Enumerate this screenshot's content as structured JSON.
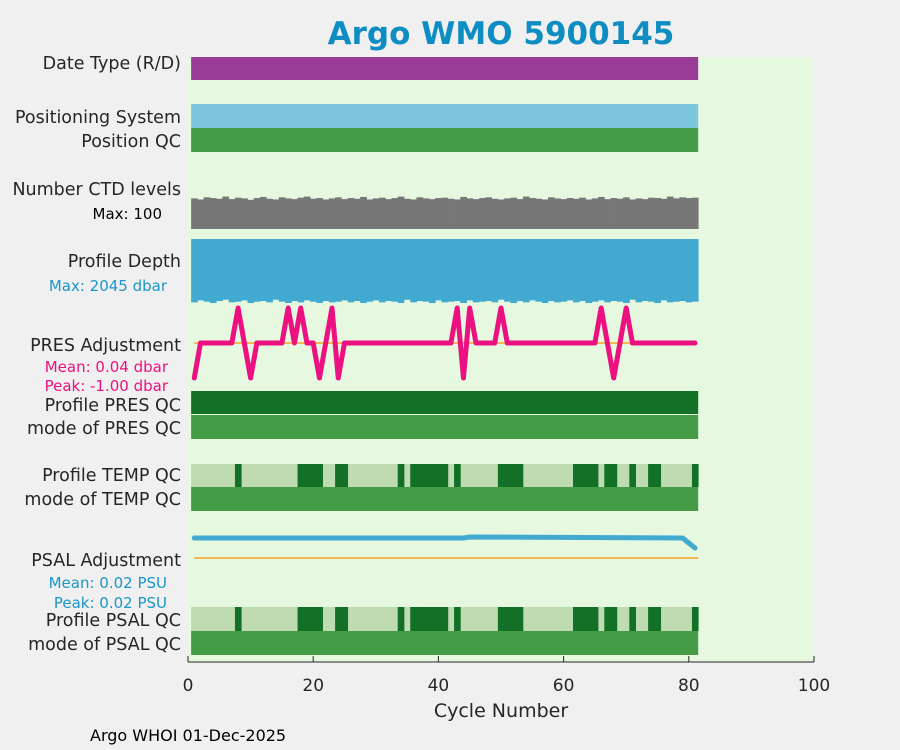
{
  "chart_data": {
    "type": "status-timeline",
    "title": "Argo WMO 5900145",
    "xlabel": "Cycle Number",
    "xlim": [
      0,
      100
    ],
    "xticks": [
      0,
      20,
      40,
      60,
      80,
      100
    ],
    "cycles_first": 1,
    "cycles_last": 81,
    "footer": "Argo WHOI 01-Dec-2025",
    "rows": {
      "date_type": "Date Type (R/D)",
      "positioning_system": "Positioning System",
      "position_qc": "Position QC",
      "ctd_levels": "Number CTD levels",
      "ctd_max": "Max: 100",
      "profile_depth": "Profile Depth",
      "depth_max": "Max: 2045 dbar",
      "pres_adjustment": "PRES Adjustment",
      "pres_mean": "Mean: 0.04 dbar",
      "pres_peak": "Peak: -1.00 dbar",
      "profile_pres_qc": "Profile PRES QC",
      "mode_pres_qc": "mode of PRES QC",
      "profile_temp_qc": "Profile TEMP QC",
      "mode_temp_qc": "mode of TEMP QC",
      "psal_adjustment": "PSAL Adjustment",
      "psal_mean": "Mean: 0.02 PSU",
      "psal_peak": "Peak: 0.02 PSU",
      "profile_psal_qc": "Profile PSAL QC",
      "mode_psal_qc": "mode of PSAL QC"
    },
    "ctd_levels_fraction": [
      0.85,
      0.82,
      0.88,
      0.86,
      0.84,
      0.9,
      0.83,
      0.87,
      0.85,
      0.81,
      0.86,
      0.89,
      0.84,
      0.82,
      0.88,
      0.85,
      0.83,
      0.87,
      0.9,
      0.84,
      0.86,
      0.82,
      0.85,
      0.88,
      0.83,
      0.86,
      0.84,
      0.89,
      0.82,
      0.85,
      0.87,
      0.83,
      0.86,
      0.9,
      0.84,
      0.82,
      0.88,
      0.85,
      0.83,
      0.86,
      0.87,
      0.84,
      0.82,
      0.89,
      0.85,
      0.83,
      0.86,
      0.88,
      0.84,
      0.82,
      0.85,
      0.87,
      0.83,
      0.9,
      0.86,
      0.84,
      0.82,
      0.88,
      0.85,
      0.83,
      0.86,
      0.84,
      0.87,
      0.82,
      0.85,
      0.89,
      0.83,
      0.86,
      0.84,
      0.88,
      0.82,
      0.85,
      0.83,
      0.87,
      0.86,
      0.84,
      0.9,
      0.85,
      0.88,
      0.86,
      0.87
    ],
    "profile_depth_fraction": [
      0.96,
      0.93,
      0.95,
      0.97,
      0.94,
      0.92,
      0.96,
      0.95,
      0.93,
      0.97,
      0.95,
      0.94,
      0.96,
      0.92,
      0.95,
      0.97,
      0.94,
      0.96,
      0.93,
      0.95,
      0.97,
      0.94,
      0.96,
      0.95,
      0.93,
      0.96,
      0.94,
      0.97,
      0.95,
      0.93,
      0.96,
      0.94,
      0.95,
      0.97,
      0.92,
      0.96,
      0.94,
      0.95,
      0.97,
      0.93,
      0.96,
      0.95,
      0.94,
      0.97,
      0.93,
      0.96,
      0.95,
      0.94,
      0.96,
      0.92,
      0.95,
      0.97,
      0.94,
      0.96,
      0.93,
      0.95,
      0.97,
      0.94,
      0.96,
      0.95,
      0.93,
      0.96,
      0.94,
      0.97,
      0.95,
      0.93,
      0.96,
      0.94,
      0.95,
      0.97,
      0.92,
      0.96,
      0.94,
      0.95,
      0.97,
      0.93,
      0.96,
      0.95,
      0.94,
      0.96,
      0.95
    ],
    "pres_adjustment_dbar": {
      "baseline": 0,
      "range": [
        -1,
        1
      ],
      "points": [
        [
          1,
          -1
        ],
        [
          2,
          0
        ],
        [
          7,
          0
        ],
        [
          8,
          1
        ],
        [
          9,
          0
        ],
        [
          10,
          -1
        ],
        [
          11,
          0
        ],
        [
          15,
          0
        ],
        [
          16,
          1
        ],
        [
          17,
          0
        ],
        [
          18,
          1
        ],
        [
          19,
          0
        ],
        [
          20,
          0
        ],
        [
          21,
          -1
        ],
        [
          22,
          0
        ],
        [
          23,
          1
        ],
        [
          24,
          -1
        ],
        [
          25,
          0
        ],
        [
          42,
          0
        ],
        [
          43,
          1
        ],
        [
          44,
          -1
        ],
        [
          45,
          1
        ],
        [
          46,
          0
        ],
        [
          49,
          0
        ],
        [
          50,
          1
        ],
        [
          51,
          0
        ],
        [
          65,
          0
        ],
        [
          66,
          1
        ],
        [
          67,
          0
        ],
        [
          68,
          -1
        ],
        [
          69,
          0
        ],
        [
          70,
          1
        ],
        [
          71,
          0
        ],
        [
          81,
          0
        ]
      ]
    },
    "psal_adjustment_psu": {
      "baseline": 0,
      "range": [
        -0.04,
        0.04
      ],
      "points": [
        [
          1,
          0.02
        ],
        [
          44,
          0.02
        ],
        [
          45,
          0.021
        ],
        [
          79,
          0.02
        ],
        [
          80,
          0.015
        ],
        [
          81,
          0.01
        ]
      ]
    },
    "temp_psal_qc_dark_cycles": [
      8,
      18,
      19,
      20,
      21,
      24,
      25,
      34,
      36,
      37,
      38,
      39,
      40,
      41,
      43,
      50,
      51,
      52,
      53,
      62,
      63,
      64,
      65,
      67,
      68,
      71,
      74,
      75,
      81
    ],
    "colors": {
      "title": "#0d8dc2",
      "plot_bg": "#e6f8df",
      "figure_bg": "#f0f0f0",
      "date_type": "#993c97",
      "positioning": "#7ec6e0",
      "good_qc": "#469b46",
      "qc_dark": "#127127",
      "qc_light": "#bedbb1",
      "ctd": "#777777",
      "depth": "#42aad0",
      "depth_label": "#1b96c8",
      "pres_line": "#ec1180",
      "zero_line": "#f5a623",
      "psal_line": "#42aad0"
    }
  }
}
